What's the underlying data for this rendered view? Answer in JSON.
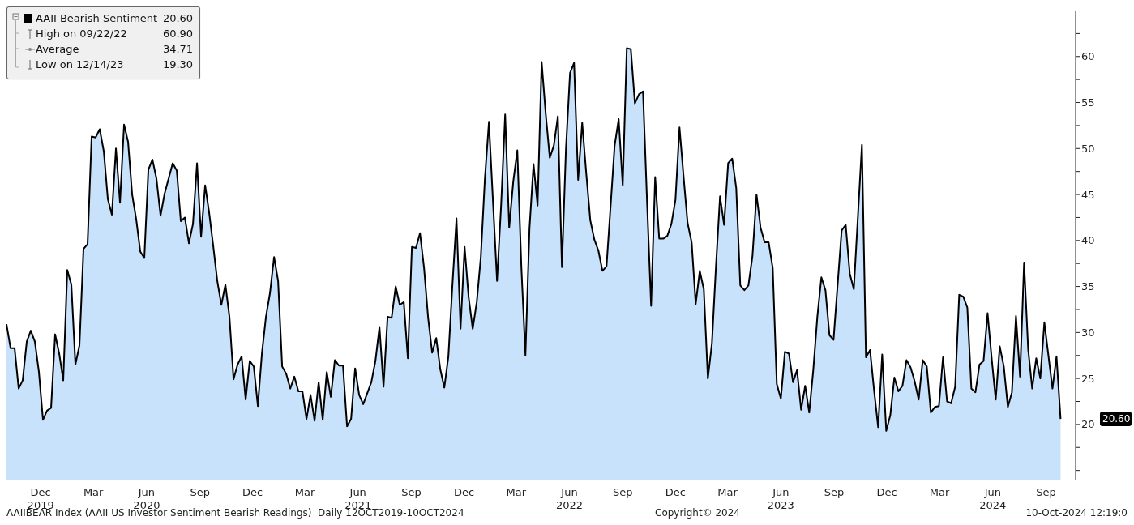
{
  "chart_data": {
    "type": "area",
    "series": [
      {
        "name": "AAII Bearish Sentiment",
        "color": "#000000",
        "x": [
          "2019-10-17",
          "2019-10-24",
          "2019-10-31",
          "2019-11-07",
          "2019-11-14",
          "2019-11-21",
          "2019-11-28",
          "2019-12-05",
          "2019-12-12",
          "2019-12-19",
          "2019-12-26",
          "2020-01-02",
          "2020-01-09",
          "2020-01-16",
          "2020-01-23",
          "2020-01-30",
          "2020-02-06",
          "2020-02-13",
          "2020-02-20",
          "2020-02-27",
          "2020-03-05",
          "2020-03-12",
          "2020-03-19",
          "2020-03-26",
          "2020-04-02",
          "2020-04-09",
          "2020-04-16",
          "2020-04-23",
          "2020-04-30",
          "2020-05-07",
          "2020-05-14",
          "2020-05-21",
          "2020-05-28",
          "2020-06-04",
          "2020-06-11",
          "2020-06-18",
          "2020-06-25",
          "2020-07-02",
          "2020-07-09",
          "2020-07-16",
          "2020-07-30",
          "2020-08-06",
          "2020-08-13",
          "2020-08-20",
          "2020-08-27",
          "2020-09-03",
          "2020-09-10",
          "2020-09-17",
          "2020-09-24",
          "2020-10-01",
          "2020-10-08",
          "2020-10-15",
          "2020-10-22",
          "2020-10-29",
          "2020-11-05",
          "2020-11-12",
          "2020-11-19",
          "2020-11-26",
          "2020-12-03",
          "2020-12-10",
          "2020-12-17",
          "2020-12-24",
          "2020-12-31",
          "2021-01-07",
          "2021-01-14",
          "2021-01-21",
          "2021-01-28",
          "2021-02-04",
          "2021-02-11",
          "2021-02-18",
          "2021-02-25",
          "2021-03-04",
          "2021-03-11",
          "2021-03-18",
          "2021-03-25",
          "2021-04-01",
          "2021-04-08",
          "2021-04-15",
          "2021-04-22",
          "2021-04-29",
          "2021-05-06",
          "2021-05-13",
          "2021-05-20",
          "2021-05-27",
          "2021-06-03",
          "2021-06-10",
          "2021-06-17",
          "2021-06-24",
          "2021-07-08",
          "2021-07-15",
          "2021-07-22",
          "2021-07-29",
          "2021-08-05",
          "2021-08-12",
          "2021-08-19",
          "2021-08-26",
          "2021-09-02",
          "2021-09-09",
          "2021-09-16",
          "2021-09-23",
          "2021-09-30",
          "2021-10-07",
          "2021-10-14",
          "2021-10-21",
          "2021-10-28",
          "2021-11-04",
          "2021-11-11",
          "2021-11-18",
          "2021-11-25",
          "2021-12-02",
          "2021-12-09",
          "2021-12-16",
          "2021-12-23",
          "2021-12-30",
          "2022-01-06",
          "2022-01-13",
          "2022-01-20",
          "2022-01-27",
          "2022-02-10",
          "2022-02-17",
          "2022-02-24",
          "2022-03-03",
          "2022-03-10",
          "2022-03-17",
          "2022-03-24",
          "2022-03-31",
          "2022-04-07",
          "2022-04-14",
          "2022-04-21",
          "2022-04-28",
          "2022-05-05",
          "2022-05-12",
          "2022-05-19",
          "2022-05-26",
          "2022-06-02",
          "2022-06-09",
          "2022-06-16",
          "2022-06-23",
          "2022-06-30",
          "2022-07-07",
          "2022-07-14",
          "2022-07-21",
          "2022-07-28",
          "2022-08-04",
          "2022-08-11",
          "2022-08-18",
          "2022-08-25",
          "2022-09-01",
          "2022-09-08",
          "2022-09-15",
          "2022-09-22",
          "2022-09-29",
          "2022-10-06",
          "2022-10-13",
          "2022-10-20",
          "2022-10-27",
          "2022-11-03",
          "2022-11-10",
          "2022-11-17",
          "2022-11-24",
          "2022-12-01",
          "2022-12-08",
          "2022-12-15",
          "2022-12-22",
          "2022-12-29",
          "2023-01-05",
          "2023-01-12",
          "2023-01-19",
          "2023-01-26",
          "2023-02-02",
          "2023-02-09",
          "2023-02-16",
          "2023-02-23",
          "2023-03-02",
          "2023-03-09",
          "2023-03-16",
          "2023-03-23",
          "2023-03-30",
          "2023-04-06",
          "2023-04-13",
          "2023-04-20",
          "2023-04-27",
          "2023-05-04",
          "2023-05-11",
          "2023-05-18",
          "2023-05-25",
          "2023-06-01",
          "2023-06-08",
          "2023-06-15",
          "2023-06-22",
          "2023-06-29",
          "2023-07-06",
          "2023-07-13",
          "2023-07-20",
          "2023-07-27",
          "2023-08-03",
          "2023-08-10",
          "2023-08-17",
          "2023-08-24",
          "2023-08-31",
          "2023-09-07",
          "2023-09-14",
          "2023-09-28",
          "2023-10-05",
          "2023-10-12",
          "2023-10-19",
          "2023-11-02",
          "2023-11-09",
          "2023-11-16",
          "2023-11-23",
          "2023-11-30",
          "2023-12-07",
          "2023-12-14",
          "2023-12-21",
          "2023-12-28",
          "2024-01-04",
          "2024-01-11",
          "2024-01-18",
          "2024-01-25",
          "2024-02-01",
          "2024-02-08",
          "2024-02-15",
          "2024-02-22",
          "2024-02-29",
          "2024-03-07",
          "2024-03-14",
          "2024-03-21",
          "2024-03-28",
          "2024-04-04",
          "2024-04-11",
          "2024-04-18",
          "2024-04-25",
          "2024-05-02",
          "2024-05-09",
          "2024-05-16",
          "2024-05-23",
          "2024-05-30",
          "2024-06-06",
          "2024-06-13",
          "2024-06-20",
          "2024-06-27",
          "2024-07-04",
          "2024-07-11",
          "2024-07-18",
          "2024-07-25",
          "2024-08-01",
          "2024-08-08",
          "2024-08-15",
          "2024-08-22",
          "2024-08-29",
          "2024-09-05",
          "2024-09-12",
          "2024-09-19",
          "2024-09-26",
          "2024-10-03",
          "2024-10-10"
        ],
        "values": [
          30.9,
          28.3,
          28.3,
          23.9,
          24.8,
          29.0,
          30.2,
          29.0,
          25.7,
          20.5,
          21.5,
          21.8,
          29.8,
          27.7,
          24.8,
          36.8,
          35.2,
          26.5,
          28.6,
          39.1,
          39.6,
          51.3,
          51.2,
          52.1,
          49.7,
          44.5,
          42.8,
          50.0,
          44.1,
          52.6,
          50.7,
          45.0,
          42.3,
          38.8,
          38.1,
          47.7,
          48.8,
          46.7,
          42.7,
          45.1,
          48.4,
          47.6,
          42.1,
          42.5,
          39.7,
          41.8,
          48.4,
          40.4,
          46.0,
          43.0,
          39.4,
          35.6,
          33.0,
          35.2,
          31.7,
          24.9,
          26.5,
          27.4,
          22.7,
          26.9,
          26.3,
          22.0,
          27.7,
          31.7,
          34.3,
          38.2,
          35.6,
          26.3,
          25.5,
          23.9,
          25.2,
          23.6,
          23.6,
          20.6,
          23.2,
          20.4,
          24.6,
          20.5,
          25.7,
          23.0,
          27.0,
          26.4,
          26.4,
          19.8,
          20.6,
          26.1,
          23.2,
          22.2,
          24.6,
          26.9,
          30.6,
          24.1,
          31.7,
          31.6,
          35.0,
          33.0,
          33.3,
          27.2,
          39.3,
          39.2,
          40.8,
          37.0,
          31.6,
          27.8,
          29.4,
          26.0,
          24.0,
          27.4,
          35.2,
          42.4,
          30.4,
          39.3,
          33.8,
          30.4,
          33.3,
          38.2,
          46.7,
          52.9,
          35.6,
          43.8,
          53.7,
          41.4,
          46.4,
          49.8,
          37.1,
          27.5,
          41.3,
          48.3,
          43.8,
          59.4,
          53.8,
          49.0,
          50.3,
          53.5,
          37.1,
          50.0,
          58.2,
          59.3,
          46.6,
          52.8,
          47.3,
          42.2,
          40.1,
          38.9,
          36.7,
          37.2,
          43.7,
          50.3,
          53.2,
          46.0,
          60.9,
          60.8,
          54.9,
          55.9,
          56.2,
          44.2,
          32.9,
          46.9,
          40.2,
          40.2,
          40.5,
          41.8,
          44.4,
          52.3,
          47.0,
          41.9,
          39.8,
          33.1,
          36.7,
          34.7,
          25.0,
          28.8,
          37.2,
          44.8,
          41.7,
          48.4,
          48.9,
          45.7,
          35.1,
          34.6,
          35.1,
          38.3,
          45.0,
          41.4,
          39.8,
          39.8,
          37.0,
          24.4,
          22.8,
          27.9,
          27.7,
          24.6,
          25.9,
          21.6,
          24.2,
          21.3,
          25.9,
          31.7,
          36.0,
          34.6,
          29.7,
          29.2,
          41.1,
          41.7,
          36.4,
          34.7,
          50.4,
          27.3,
          28.1,
          23.7,
          19.7,
          27.6,
          19.3,
          21.0,
          25.1,
          23.6,
          24.2,
          27.0,
          26.2,
          24.7,
          22.7,
          27.0,
          26.3,
          21.3,
          21.9,
          22.0,
          27.3,
          22.5,
          22.3,
          24.1,
          34.1,
          33.9,
          32.7,
          23.9,
          23.5,
          26.5,
          26.9,
          32.1,
          27.2,
          22.7,
          28.5,
          26.3,
          21.9,
          23.5,
          31.8,
          25.2,
          37.6,
          28.2,
          23.9,
          27.2,
          25.0,
          31.1,
          27.5,
          23.9,
          27.4,
          20.6
        ]
      }
    ],
    "xlim": [
      "2019-10-17",
      "2024-11-05"
    ],
    "xticks": [
      {
        "value": "2019-12-15",
        "label": "Dec\n2019"
      },
      {
        "value": "2020-03-15",
        "label": "Mar"
      },
      {
        "value": "2020-06-15",
        "label": "Jun\n2020"
      },
      {
        "value": "2020-09-15",
        "label": "Sep"
      },
      {
        "value": "2020-12-15",
        "label": "Dec"
      },
      {
        "value": "2021-03-15",
        "label": "Mar"
      },
      {
        "value": "2021-06-15",
        "label": "Jun\n2021"
      },
      {
        "value": "2021-09-15",
        "label": "Sep"
      },
      {
        "value": "2021-12-15",
        "label": "Dec"
      },
      {
        "value": "2022-03-15",
        "label": "Mar"
      },
      {
        "value": "2022-06-15",
        "label": "Jun\n2022"
      },
      {
        "value": "2022-09-15",
        "label": "Sep"
      },
      {
        "value": "2022-12-15",
        "label": "Dec"
      },
      {
        "value": "2023-03-15",
        "label": "Mar"
      },
      {
        "value": "2023-06-15",
        "label": "Jun\n2023"
      },
      {
        "value": "2023-09-15",
        "label": "Sep"
      },
      {
        "value": "2023-12-15",
        "label": "Dec"
      },
      {
        "value": "2024-03-15",
        "label": "Mar"
      },
      {
        "value": "2024-06-15",
        "label": "Jun\n2024"
      },
      {
        "value": "2024-09-15",
        "label": "Sep"
      }
    ],
    "ylim": [
      14,
      65
    ],
    "yticks": [
      {
        "value": 15,
        "label": null
      },
      {
        "value": 17.5,
        "label": null
      },
      20,
      {
        "value": 22.5,
        "label": null
      },
      25,
      {
        "value": 27.5,
        "label": null
      },
      30,
      {
        "value": 32.5,
        "label": null
      },
      35,
      {
        "value": 37.5,
        "label": null
      },
      40,
      {
        "value": 42.5,
        "label": null
      },
      45,
      {
        "value": 47.5,
        "label": null
      },
      50,
      {
        "value": 52.5,
        "label": null
      },
      55,
      {
        "value": 57.5,
        "label": null
      },
      60,
      {
        "value": 62.5,
        "label": null
      }
    ],
    "legend": "top left",
    "annotations": [
      "20.60",
      "High on 09/22/22",
      "60.90",
      "Average",
      "34.71",
      "Low on 12/14/23",
      "19.30",
      "20.60",
      "AAIIBEAR Index (AAII US Investor Sentiment Bearish Readings)  Daily 12OCT2019-10OCT2024",
      "Copyright© 2024",
      "10-Oct-2024 12:19:0"
    ]
  }
}
